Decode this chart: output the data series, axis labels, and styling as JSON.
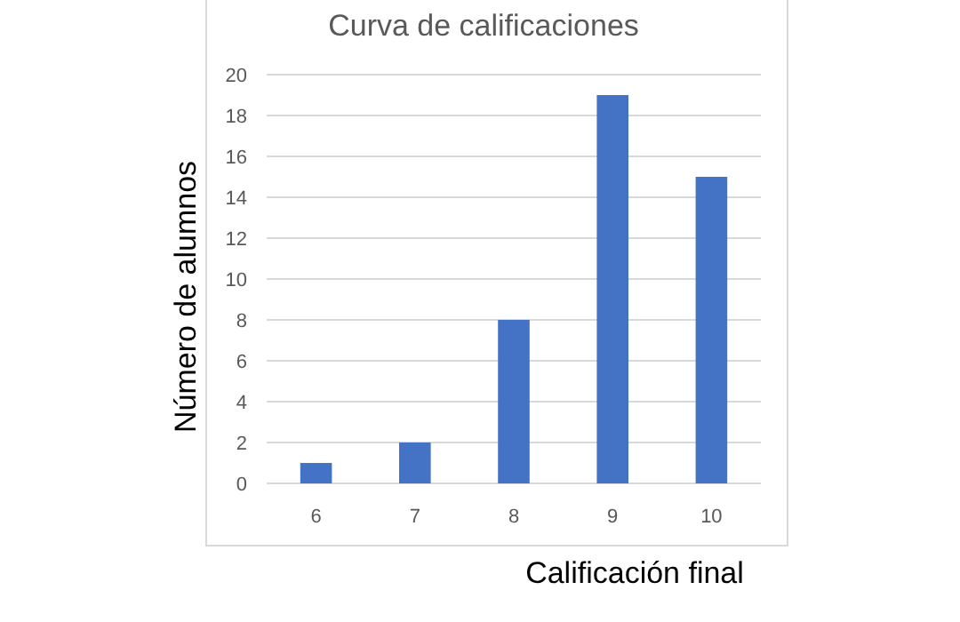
{
  "chart_data": {
    "type": "bar",
    "title": "Curva de calificaciones",
    "xlabel": "Calificación final",
    "ylabel": "Número de alumnos",
    "categories": [
      "6",
      "7",
      "8",
      "9",
      "10"
    ],
    "values": [
      1,
      2,
      8,
      19,
      15
    ],
    "color": "#4472c4",
    "ylim": [
      0,
      20
    ],
    "yticks": [
      0,
      2,
      4,
      6,
      8,
      10,
      12,
      14,
      16,
      18,
      20
    ],
    "grid": "y"
  }
}
